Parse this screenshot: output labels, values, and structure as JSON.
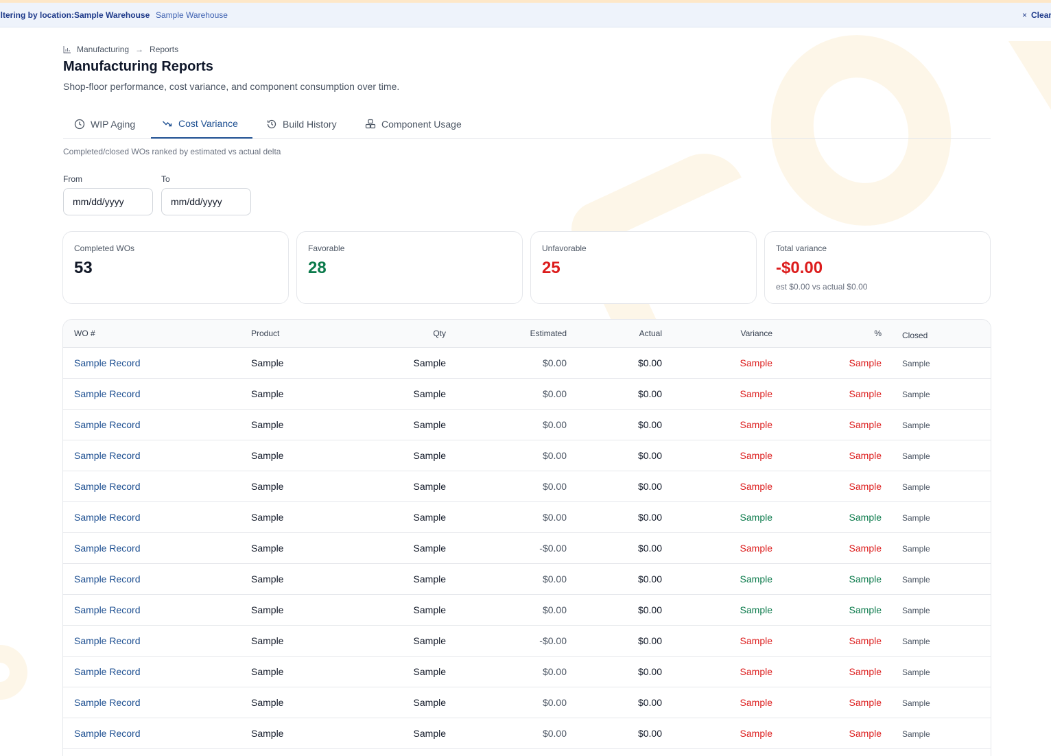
{
  "filter_bar": {
    "label": "Filtering by location:",
    "location": "Sample Warehouse",
    "location_sub": "Sample Warehouse",
    "clear_label": "Clear"
  },
  "breadcrumb": {
    "items": [
      "Manufacturing",
      "Reports"
    ],
    "icon": "bar-chart-icon"
  },
  "page": {
    "title": "Manufacturing Reports",
    "subtitle": "Shop-floor performance, cost variance, and component consumption over time."
  },
  "tabs": [
    {
      "label": "WIP Aging",
      "icon": "clock-icon",
      "active": false
    },
    {
      "label": "Cost Variance",
      "icon": "trending-down-icon",
      "active": true
    },
    {
      "label": "Build History",
      "icon": "history-icon",
      "active": false
    },
    {
      "label": "Component Usage",
      "icon": "components-icon",
      "active": false
    }
  ],
  "description": "Completed/closed WOs ranked by estimated vs actual delta",
  "filters": {
    "from_label": "From",
    "from_placeholder": "mm/dd/yyyy",
    "to_label": "To",
    "to_placeholder": "mm/dd/yyyy"
  },
  "stats": [
    {
      "label": "Completed WOs",
      "value": "53",
      "color": "#111827"
    },
    {
      "label": "Favorable",
      "value": "28",
      "color": "#0b7a4b"
    },
    {
      "label": "Unfavorable",
      "value": "25",
      "color": "#dc1c1c"
    },
    {
      "label": "Total variance",
      "value": "-$0.00",
      "color": "#dc1c1c",
      "note": "est $0.00 vs actual $0.00"
    }
  ],
  "table": {
    "columns": [
      "WO #",
      "Product",
      "Qty",
      "Estimated",
      "Actual",
      "Variance",
      "%",
      "Closed"
    ],
    "rows": [
      {
        "wo": "Sample Record",
        "product": "Sample",
        "qty": "Sample",
        "estimated": "$0.00",
        "actual": "$0.00",
        "variance": "Sample",
        "pct": "Sample",
        "closed": "Sample",
        "status": "unfavorable"
      },
      {
        "wo": "Sample Record",
        "product": "Sample",
        "qty": "Sample",
        "estimated": "$0.00",
        "actual": "$0.00",
        "variance": "Sample",
        "pct": "Sample",
        "closed": "Sample",
        "status": "unfavorable"
      },
      {
        "wo": "Sample Record",
        "product": "Sample",
        "qty": "Sample",
        "estimated": "$0.00",
        "actual": "$0.00",
        "variance": "Sample",
        "pct": "Sample",
        "closed": "Sample",
        "status": "unfavorable"
      },
      {
        "wo": "Sample Record",
        "product": "Sample",
        "qty": "Sample",
        "estimated": "$0.00",
        "actual": "$0.00",
        "variance": "Sample",
        "pct": "Sample",
        "closed": "Sample",
        "status": "unfavorable"
      },
      {
        "wo": "Sample Record",
        "product": "Sample",
        "qty": "Sample",
        "estimated": "$0.00",
        "actual": "$0.00",
        "variance": "Sample",
        "pct": "Sample",
        "closed": "Sample",
        "status": "unfavorable"
      },
      {
        "wo": "Sample Record",
        "product": "Sample",
        "qty": "Sample",
        "estimated": "$0.00",
        "actual": "$0.00",
        "variance": "Sample",
        "pct": "Sample",
        "closed": "Sample",
        "status": "favorable"
      },
      {
        "wo": "Sample Record",
        "product": "Sample",
        "qty": "Sample",
        "estimated": "-$0.00",
        "actual": "$0.00",
        "variance": "Sample",
        "pct": "Sample",
        "closed": "Sample",
        "status": "unfavorable"
      },
      {
        "wo": "Sample Record",
        "product": "Sample",
        "qty": "Sample",
        "estimated": "$0.00",
        "actual": "$0.00",
        "variance": "Sample",
        "pct": "Sample",
        "closed": "Sample",
        "status": "favorable"
      },
      {
        "wo": "Sample Record",
        "product": "Sample",
        "qty": "Sample",
        "estimated": "$0.00",
        "actual": "$0.00",
        "variance": "Sample",
        "pct": "Sample",
        "closed": "Sample",
        "status": "favorable"
      },
      {
        "wo": "Sample Record",
        "product": "Sample",
        "qty": "Sample",
        "estimated": "-$0.00",
        "actual": "$0.00",
        "variance": "Sample",
        "pct": "Sample",
        "closed": "Sample",
        "status": "unfavorable"
      },
      {
        "wo": "Sample Record",
        "product": "Sample",
        "qty": "Sample",
        "estimated": "$0.00",
        "actual": "$0.00",
        "variance": "Sample",
        "pct": "Sample",
        "closed": "Sample",
        "status": "unfavorable"
      },
      {
        "wo": "Sample Record",
        "product": "Sample",
        "qty": "Sample",
        "estimated": "$0.00",
        "actual": "$0.00",
        "variance": "Sample",
        "pct": "Sample",
        "closed": "Sample",
        "status": "unfavorable"
      },
      {
        "wo": "Sample Record",
        "product": "Sample",
        "qty": "Sample",
        "estimated": "$0.00",
        "actual": "$0.00",
        "variance": "Sample",
        "pct": "Sample",
        "closed": "Sample",
        "status": "unfavorable"
      }
    ]
  },
  "colors": {
    "accent": "#1d4f91",
    "favorable": "#0b7a4b",
    "unfavorable": "#dc1c1c"
  }
}
